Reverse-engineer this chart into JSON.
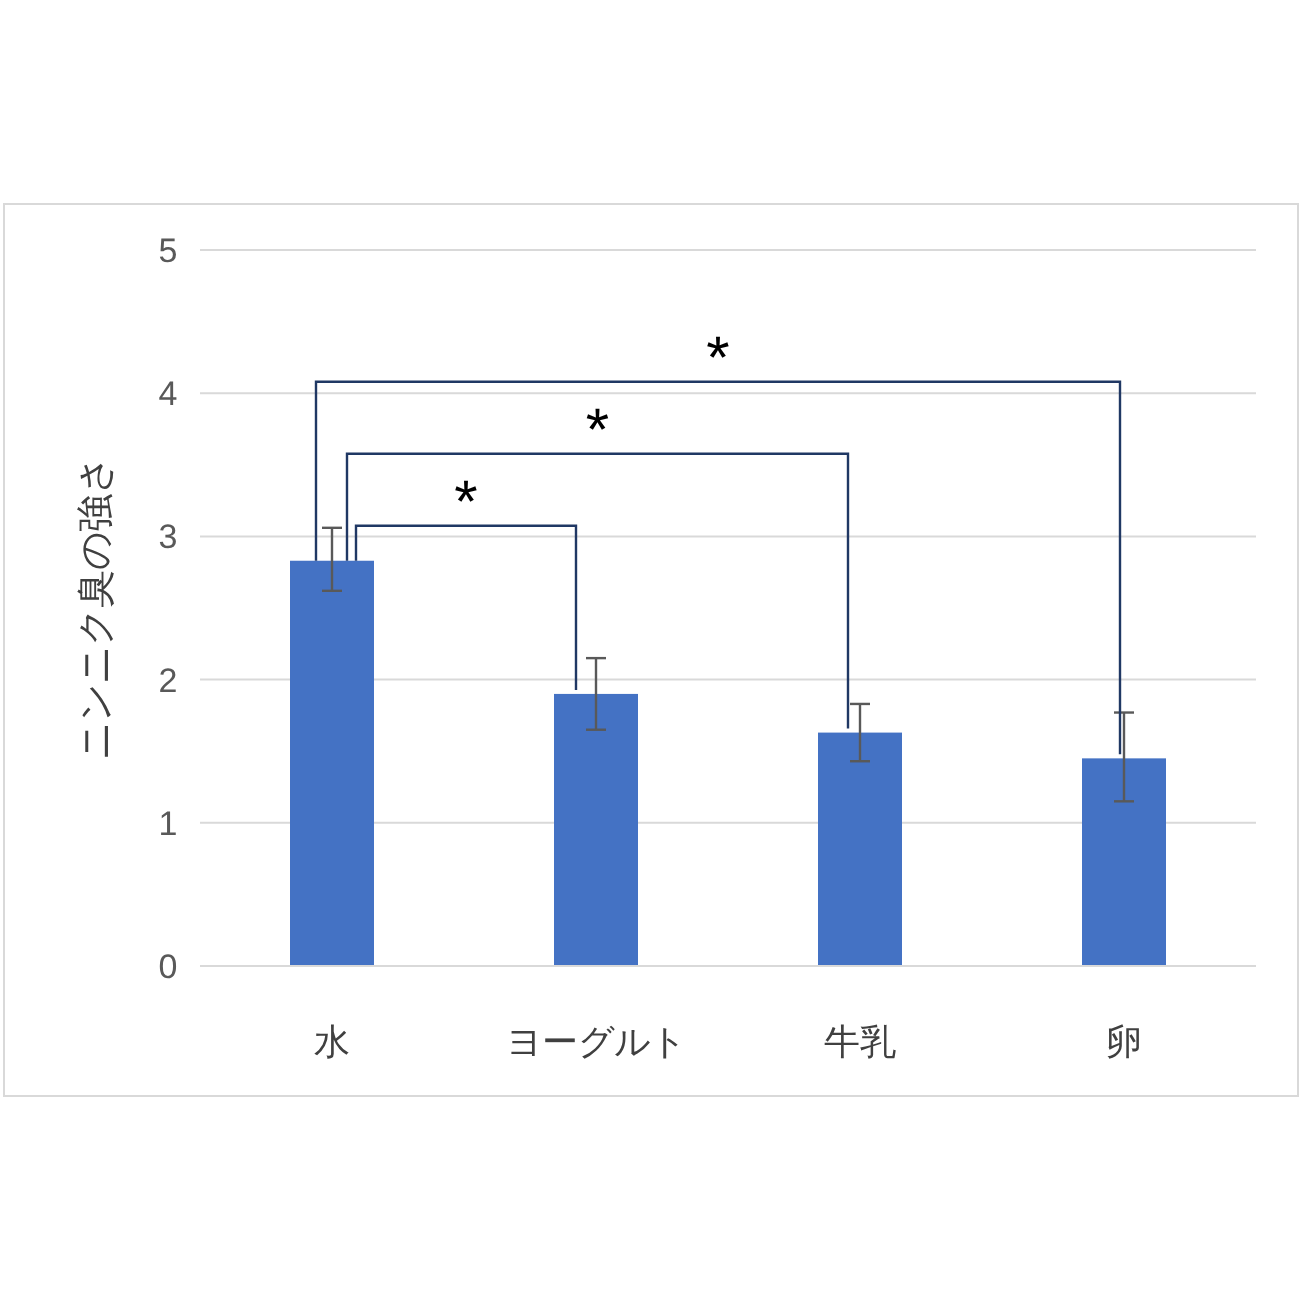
{
  "chart_data": {
    "type": "bar",
    "ylabel": "ニンニク臭の強さ",
    "categories": [
      "水",
      "ヨーグルト",
      "牛乳",
      "卵"
    ],
    "values": [
      2.83,
      1.9,
      1.63,
      1.45
    ],
    "errors": [
      [
        2.62,
        3.06
      ],
      [
        1.65,
        2.15
      ],
      [
        1.43,
        1.83
      ],
      [
        1.15,
        1.77
      ]
    ],
    "color": "#4472c4",
    "ylim": [
      0,
      5
    ],
    "yticks": [
      0,
      1,
      2,
      3,
      4,
      5
    ],
    "grid": "y",
    "annotations": [
      "*",
      "*",
      "*"
    ]
  }
}
